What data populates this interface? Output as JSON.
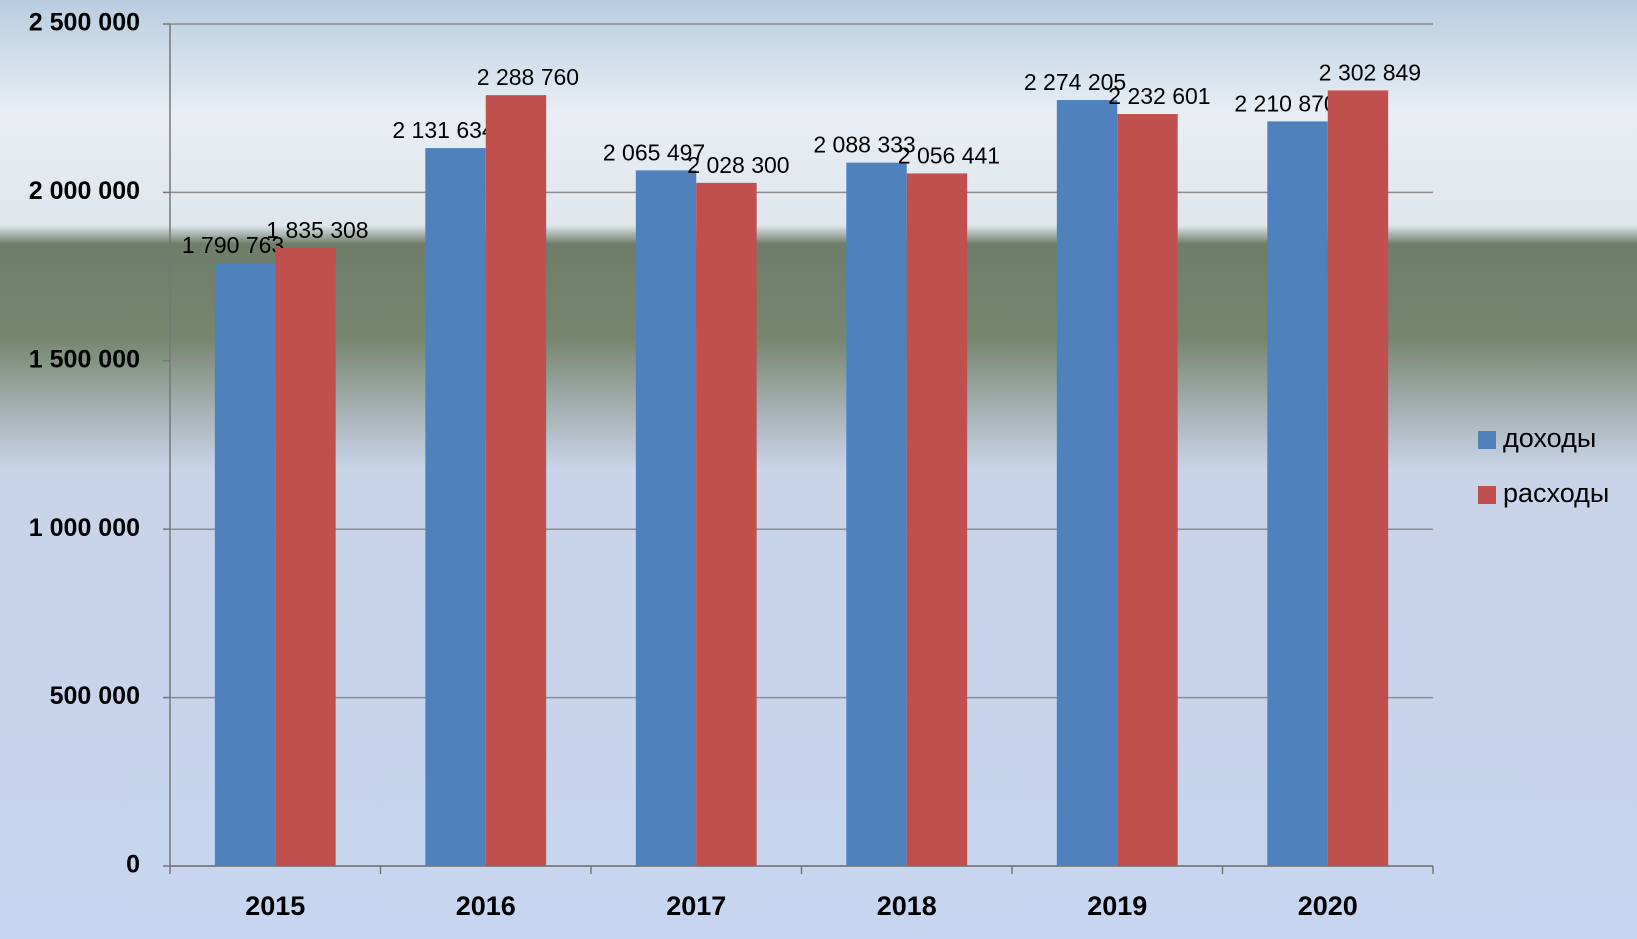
{
  "chart_data": {
    "type": "bar",
    "categories": [
      "2015",
      "2016",
      "2017",
      "2018",
      "2019",
      "2020"
    ],
    "series": [
      {
        "name": "доходы",
        "color": "#4f81bd",
        "values": [
          1790763,
          2131634,
          2065497,
          2088333,
          2274205,
          2210870
        ],
        "value_labels": [
          "1 790 763",
          "2 131 634",
          "2 065 497",
          "2 088 333",
          "2 274 205",
          "2 210 870"
        ]
      },
      {
        "name": "расходы",
        "color": "#c0504d",
        "values": [
          1835308,
          2288760,
          2028300,
          2056441,
          2232601,
          2302849
        ],
        "value_labels": [
          "1 835 308",
          "2 288 760",
          "2 028 300",
          "2 056 441",
          "2 232 601",
          "2 302 849"
        ]
      }
    ],
    "ylim": [
      0,
      2500000
    ],
    "yticks": [
      0,
      {
        "value": 500000,
        "label": "500 000"
      },
      {
        "value": 1000000,
        "label": "1 000 000"
      },
      {
        "value": 1500000,
        "label": "1 500 000"
      },
      {
        "value": 2000000,
        "label": "2 000 000"
      },
      {
        "value": 2500000,
        "label": "2 500 000"
      }
    ],
    "grid": true,
    "legend": "right"
  }
}
